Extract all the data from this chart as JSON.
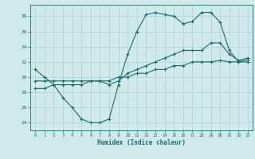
{
  "xlabel": "Humidex (Indice chaleur)",
  "bg_color": "#d0eaec",
  "grid_color": "#b0d0d4",
  "line_color": "#1a6b6b",
  "xlim": [
    -0.5,
    23.5
  ],
  "ylim": [
    23,
    39.5
  ],
  "yticks": [
    24,
    26,
    28,
    30,
    32,
    34,
    36,
    38
  ],
  "xticks": [
    0,
    1,
    2,
    3,
    4,
    5,
    6,
    7,
    8,
    9,
    10,
    11,
    12,
    13,
    14,
    15,
    16,
    17,
    18,
    19,
    20,
    21,
    22,
    23
  ],
  "line1_x": [
    0,
    1,
    2,
    3,
    4,
    5,
    6,
    7,
    8,
    9,
    10,
    11,
    12,
    13,
    14,
    15,
    16,
    17,
    18,
    19,
    20,
    21,
    22,
    23
  ],
  "line1_y": [
    31,
    30,
    29,
    27.3,
    26,
    24.5,
    24,
    24,
    24.5,
    29,
    33,
    36,
    38.2,
    38.5,
    38.2,
    38,
    37,
    37.3,
    38.5,
    38.5,
    37.2,
    33.5,
    32,
    32
  ],
  "line2_x": [
    0,
    1,
    2,
    3,
    4,
    5,
    6,
    7,
    8,
    9,
    10,
    11,
    12,
    13,
    14,
    15,
    16,
    17,
    18,
    19,
    20,
    21,
    22,
    23
  ],
  "line2_y": [
    29.5,
    29.5,
    29.5,
    29.5,
    29.5,
    29.5,
    29.5,
    29.5,
    29,
    29.5,
    30.5,
    31,
    31.5,
    32,
    32.5,
    33,
    33.5,
    33.5,
    33.5,
    34.5,
    34.5,
    33,
    32.2,
    32.5
  ],
  "line3_x": [
    0,
    1,
    2,
    3,
    4,
    5,
    6,
    7,
    8,
    9,
    10,
    11,
    12,
    13,
    14,
    15,
    16,
    17,
    18,
    19,
    20,
    21,
    22,
    23
  ],
  "line3_y": [
    28.5,
    28.5,
    29,
    29,
    29,
    29,
    29.5,
    29.5,
    29.5,
    30,
    30,
    30.5,
    30.5,
    31,
    31,
    31.5,
    31.5,
    32,
    32,
    32,
    32.2,
    32,
    32,
    32.3
  ]
}
